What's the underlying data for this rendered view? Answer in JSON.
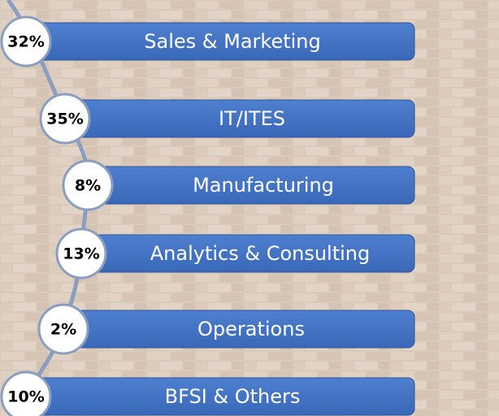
{
  "items": [
    {
      "percent": "32%",
      "label": "Sales & Marketing"
    },
    {
      "percent": "35%",
      "label": "IT/ITES"
    },
    {
      "percent": "8%",
      "label": "Manufacturing"
    },
    {
      "percent": "13%",
      "label": "Analytics & Consulting"
    },
    {
      "percent": "2%",
      "label": "Operations"
    },
    {
      "percent": "10%",
      "label": "BFSI & Others"
    }
  ]
}
